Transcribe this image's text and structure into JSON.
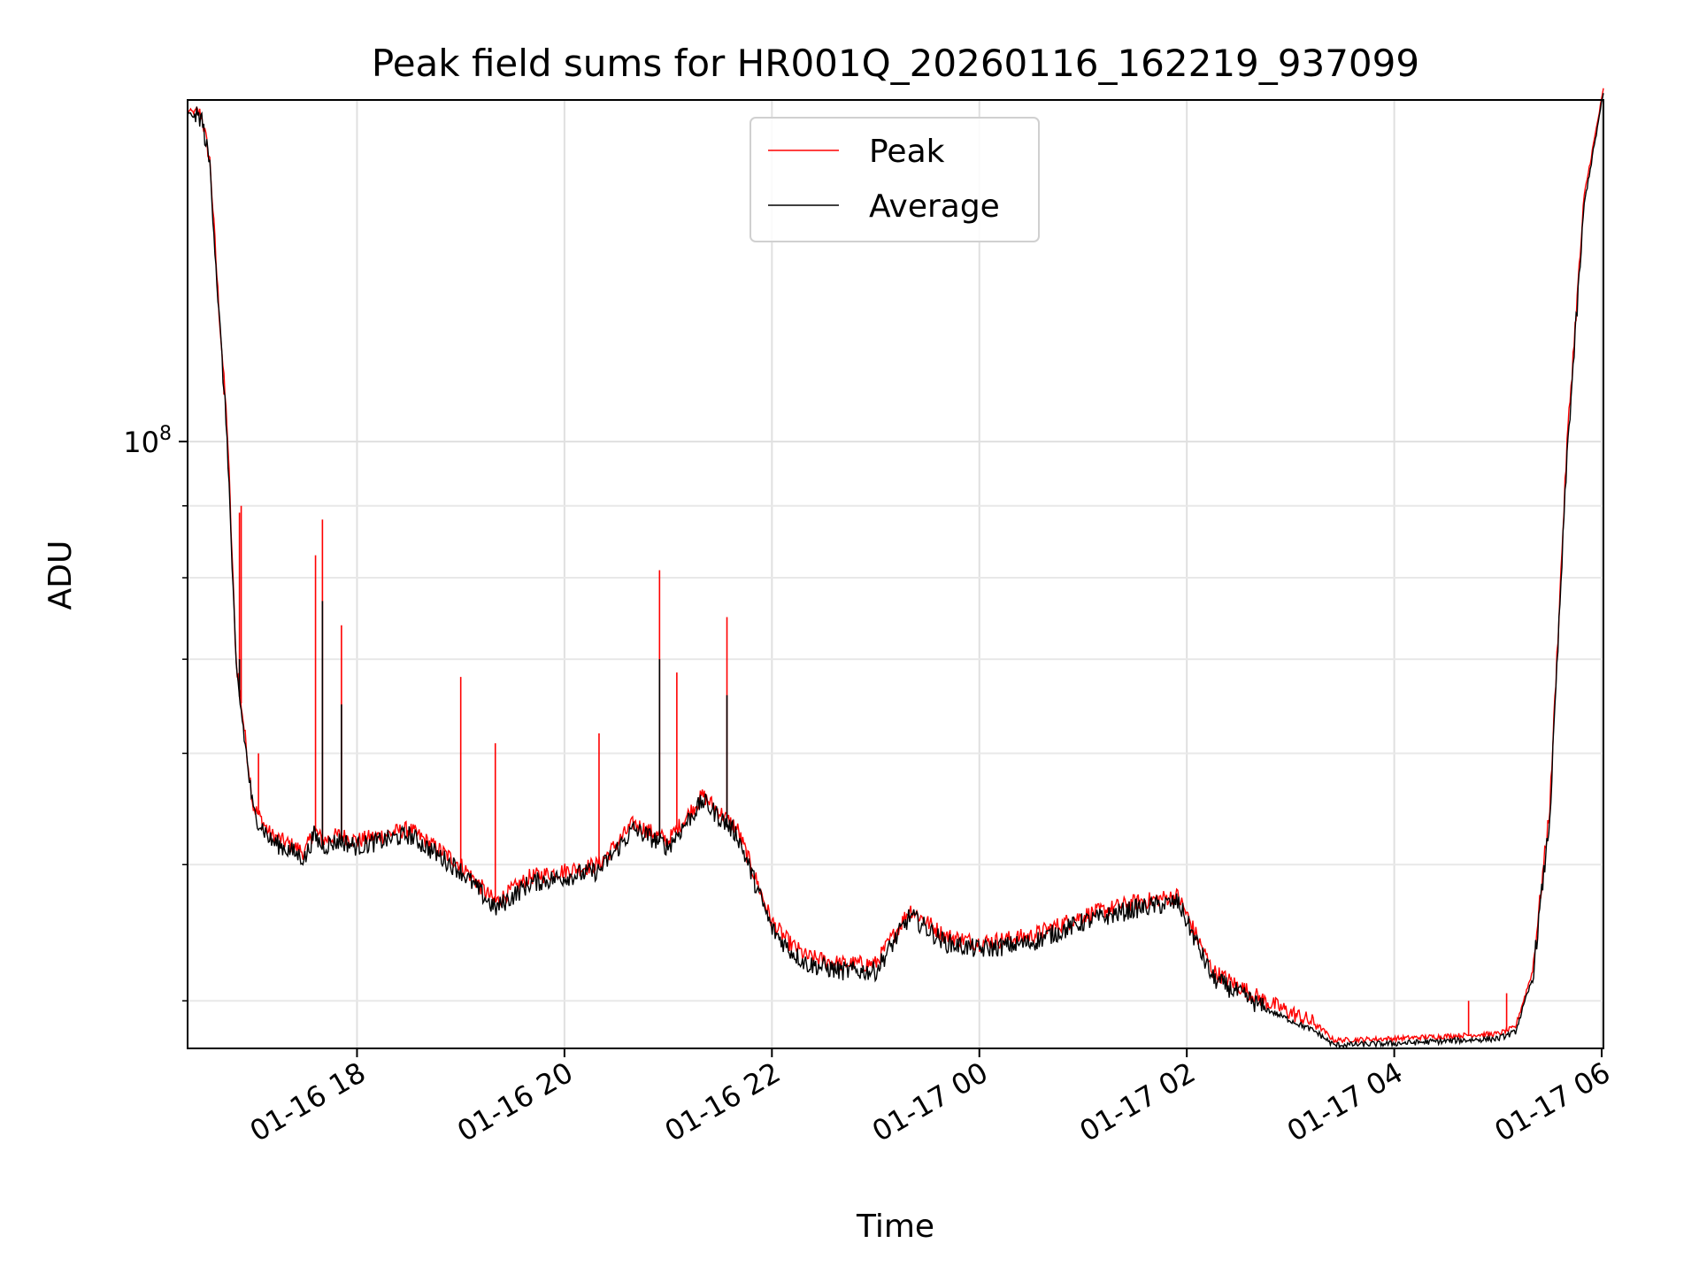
{
  "chart_data": {
    "type": "line",
    "title": "Peak field sums for HR001Q_20260116_162219_937099",
    "xlabel": "Time",
    "ylabel": "ADU",
    "y_scale": "log",
    "ylim": [
      37000000,
      175000000
    ],
    "xlim": [
      "2026-01-16 16:22",
      "2026-01-17 06:01"
    ],
    "x_ticks": [
      "2026-01-16 18:00",
      "2026-01-16 20:00",
      "2026-01-16 22:00",
      "2026-01-17 00:00",
      "2026-01-17 02:00",
      "2026-01-17 04:00",
      "2026-01-17 06:00"
    ],
    "x_tick_labels": [
      "01-16 18",
      "01-16 20",
      "01-16 22",
      "01-17 00",
      "01-17 02",
      "01-17 04",
      "01-17 06"
    ],
    "y_major_ticks": [
      100000000
    ],
    "y_major_tick_label_base": "10",
    "y_major_tick_label_exp": "8",
    "y_minor_ticks": [
      40000000,
      50000000,
      60000000,
      70000000,
      80000000,
      90000000,
      200000000
    ],
    "grid": true,
    "legend": {
      "placement": "top-center"
    },
    "colors": {
      "peak": "#ff0000",
      "average": "#000000"
    },
    "series": [
      {
        "name": "Peak",
        "x": [
          "2026-01-16 16:22",
          "2026-01-16 16:30",
          "2026-01-16 16:35",
          "2026-01-16 16:40",
          "2026-01-16 16:45",
          "2026-01-16 16:50",
          "2026-01-16 17:00",
          "2026-01-16 17:10",
          "2026-01-16 17:30",
          "2026-01-16 17:35",
          "2026-01-16 17:40",
          "2026-01-16 17:50",
          "2026-01-16 18:00",
          "2026-01-16 18:30",
          "2026-01-16 19:00",
          "2026-01-16 19:20",
          "2026-01-16 19:40",
          "2026-01-16 20:00",
          "2026-01-16 20:20",
          "2026-01-16 20:40",
          "2026-01-16 21:00",
          "2026-01-16 21:20",
          "2026-01-16 21:40",
          "2026-01-16 22:00",
          "2026-01-16 22:10",
          "2026-01-16 22:20",
          "2026-01-16 22:40",
          "2026-01-16 23:00",
          "2026-01-16 23:20",
          "2026-01-16 23:40",
          "2026-01-17 00:00",
          "2026-01-17 00:30",
          "2026-01-17 01:00",
          "2026-01-17 01:30",
          "2026-01-17 01:55",
          "2026-01-17 02:15",
          "2026-01-17 02:45",
          "2026-01-17 03:15",
          "2026-01-17 03:25",
          "2026-01-17 04:00",
          "2026-01-17 04:40",
          "2026-01-17 05:00",
          "2026-01-17 05:10",
          "2026-01-17 05:20",
          "2026-01-17 05:30",
          "2026-01-17 05:40",
          "2026-01-17 05:50",
          "2026-01-17 06:01"
        ],
        "y": [
          172000000,
          171000000,
          158000000,
          125000000,
          102000000,
          70000000,
          55000000,
          52500000,
          51000000,
          53000000,
          52000000,
          52500000,
          52000000,
          53000000,
          50000000,
          47000000,
          49000000,
          49500000,
          50000000,
          53500000,
          52000000,
          56000000,
          53000000,
          45500000,
          44000000,
          43000000,
          42500000,
          42500000,
          46500000,
          44500000,
          44000000,
          44500000,
          46000000,
          47000000,
          47500000,
          42000000,
          40000000,
          38500000,
          37500000,
          37600000,
          37800000,
          37900000,
          38300000,
          42000000,
          55000000,
          100000000,
          150000000,
          178000000
        ],
        "spikes": [
          {
            "x": "2026-01-16 16:43",
            "y": 108000000
          },
          {
            "x": "2026-01-16 16:52",
            "y": 89000000
          },
          {
            "x": "2026-01-16 16:53",
            "y": 90000000
          },
          {
            "x": "2026-01-16 17:03",
            "y": 60000000
          },
          {
            "x": "2026-01-16 17:36",
            "y": 83000000
          },
          {
            "x": "2026-01-16 17:40",
            "y": 88000000
          },
          {
            "x": "2026-01-16 17:51",
            "y": 74000000
          },
          {
            "x": "2026-01-16 19:00",
            "y": 68000000
          },
          {
            "x": "2026-01-16 19:20",
            "y": 61000000
          },
          {
            "x": "2026-01-16 20:20",
            "y": 62000000
          },
          {
            "x": "2026-01-16 20:55",
            "y": 81000000
          },
          {
            "x": "2026-01-16 21:05",
            "y": 68500000
          },
          {
            "x": "2026-01-16 21:34",
            "y": 75000000
          },
          {
            "x": "2026-01-17 04:43",
            "y": 40000000
          },
          {
            "x": "2026-01-17 05:05",
            "y": 40500000
          }
        ]
      },
      {
        "name": "Average",
        "x": [
          "2026-01-16 16:22",
          "2026-01-16 16:30",
          "2026-01-16 16:35",
          "2026-01-16 16:40",
          "2026-01-16 16:45",
          "2026-01-16 16:50",
          "2026-01-16 17:00",
          "2026-01-16 17:10",
          "2026-01-16 17:30",
          "2026-01-16 17:35",
          "2026-01-16 17:40",
          "2026-01-16 17:50",
          "2026-01-16 18:00",
          "2026-01-16 18:30",
          "2026-01-16 19:00",
          "2026-01-16 19:20",
          "2026-01-16 19:40",
          "2026-01-16 20:00",
          "2026-01-16 20:20",
          "2026-01-16 20:40",
          "2026-01-16 21:00",
          "2026-01-16 21:20",
          "2026-01-16 21:40",
          "2026-01-16 22:00",
          "2026-01-16 22:10",
          "2026-01-16 22:20",
          "2026-01-16 22:40",
          "2026-01-16 23:00",
          "2026-01-16 23:20",
          "2026-01-16 23:40",
          "2026-01-17 00:00",
          "2026-01-17 00:30",
          "2026-01-17 01:00",
          "2026-01-17 01:30",
          "2026-01-17 01:55",
          "2026-01-17 02:15",
          "2026-01-17 02:45",
          "2026-01-17 03:15",
          "2026-01-17 03:25",
          "2026-01-17 04:00",
          "2026-01-17 04:40",
          "2026-01-17 05:00",
          "2026-01-17 05:10",
          "2026-01-17 05:20",
          "2026-01-17 05:30",
          "2026-01-17 05:40",
          "2026-01-17 05:50",
          "2026-01-17 06:01"
        ],
        "y": [
          171000000,
          170000000,
          157000000,
          124000000,
          100000000,
          69000000,
          54500000,
          52000000,
          50500000,
          52500000,
          51500000,
          52000000,
          51500000,
          52500000,
          49500000,
          46500000,
          48500000,
          49000000,
          49500000,
          53000000,
          51500000,
          55500000,
          52500000,
          45000000,
          43500000,
          42500000,
          42000000,
          42000000,
          46000000,
          44000000,
          43500000,
          44000000,
          45500000,
          46500000,
          47000000,
          41500000,
          39500000,
          38000000,
          37200000,
          37300000,
          37500000,
          37600000,
          38000000,
          41500000,
          54000000,
          98000000,
          148000000,
          177000000
        ],
        "spikes": [
          {
            "x": "2026-01-16 16:52",
            "y": 70000000
          },
          {
            "x": "2026-01-16 17:40",
            "y": 77000000
          },
          {
            "x": "2026-01-16 17:51",
            "y": 65000000
          },
          {
            "x": "2026-01-16 20:55",
            "y": 70000000
          },
          {
            "x": "2026-01-16 21:34",
            "y": 66000000
          }
        ]
      }
    ]
  }
}
